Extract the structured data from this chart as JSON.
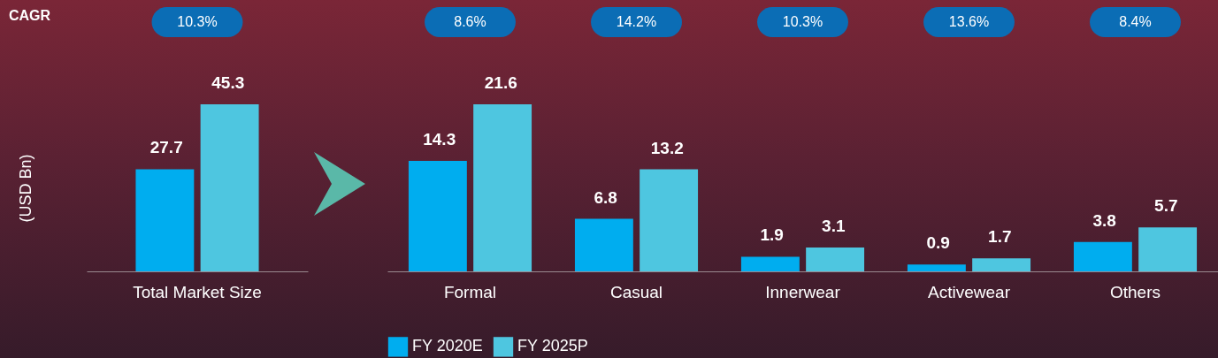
{
  "chart_data": [
    {
      "type": "bar",
      "ylabel": "(USD Bn)",
      "categories": [
        "Total Market Size"
      ],
      "series": [
        {
          "color": "#00adef",
          "values": [
            27.7
          ]
        },
        {
          "color": "#4ec6e0",
          "values": [
            45.3
          ]
        }
      ],
      "data_labels": true,
      "annotations": [
        "CAGR",
        "10.3%"
      ]
    },
    {
      "type": "bar",
      "categories": [
        "Formal",
        "Casual",
        "Innerwear",
        "Activewear",
        "Others"
      ],
      "series": [
        {
          "name": "FY 2020E",
          "color": "#00adef",
          "values": [
            14.3,
            6.8,
            1.9,
            0.9,
            3.8
          ]
        },
        {
          "name": "FY 2025P",
          "color": "#4ec6e0",
          "values": [
            21.6,
            13.2,
            3.1,
            1.7,
            5.7
          ]
        }
      ],
      "data_labels": true,
      "legend": "bottom",
      "annotations": [
        "8.6%",
        "14.2%",
        "10.3%",
        "13.6%",
        "8.4%"
      ]
    }
  ]
}
